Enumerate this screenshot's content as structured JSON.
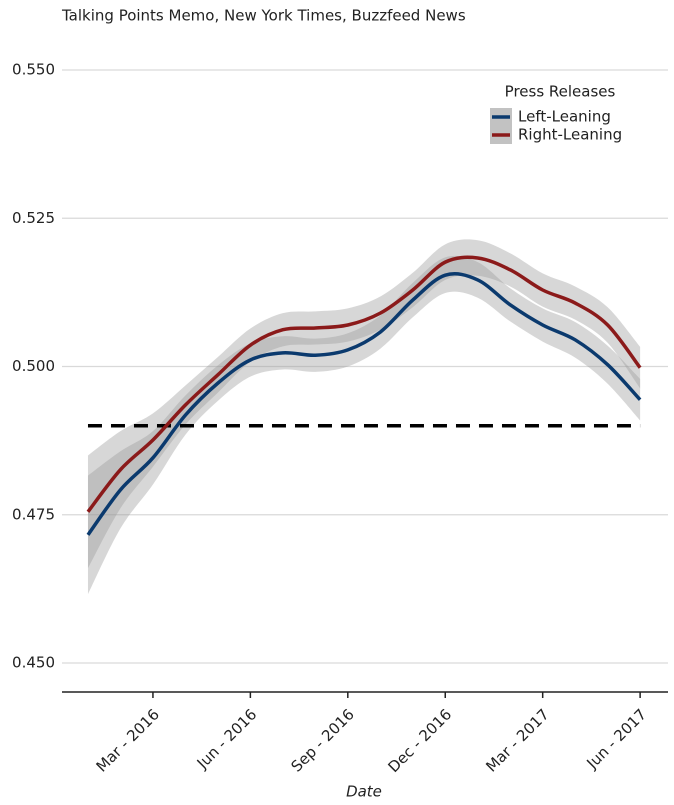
{
  "chart_data": {
    "type": "line",
    "title": "Talking Points Memo, New York Times, Buzzfeed News",
    "xlabel": "Date",
    "legend_title": "Press Releases",
    "legend": "top-right",
    "grid": true,
    "x": [
      "2016-01",
      "2016-02",
      "2016-03",
      "2016-04",
      "2016-05",
      "2016-06",
      "2016-07",
      "2016-08",
      "2016-09",
      "2016-10",
      "2016-11",
      "2016-12",
      "2017-01",
      "2017-02",
      "2017-03",
      "2017-04",
      "2017-05",
      "2017-06"
    ],
    "xlim": [
      "2015-12",
      "2017-07"
    ],
    "xticks": [
      {
        "value": "2016-03",
        "label": "Mar - 2016"
      },
      {
        "value": "2016-06",
        "label": "Jun - 2016"
      },
      {
        "value": "2016-09",
        "label": "Sep - 2016"
      },
      {
        "value": "2016-12",
        "label": "Dec - 2016"
      },
      {
        "value": "2017-03",
        "label": "Mar - 2017"
      },
      {
        "value": "2017-06",
        "label": "Jun - 2017"
      }
    ],
    "ylim": [
      0.445,
      0.555
    ],
    "yticks": [
      {
        "value": 0.45,
        "label": "0.450"
      },
      0.475,
      {
        "value": 0.5,
        "label": "0.500"
      },
      0.525,
      {
        "value": 0.55,
        "label": "0.550"
      }
    ],
    "reference_line": 0.49,
    "series": [
      {
        "name": "Left-Leaning",
        "color": "#0b3a6e",
        "values": [
          0.4716,
          0.4792,
          0.4846,
          0.4918,
          0.4972,
          0.5011,
          0.5023,
          0.5019,
          0.5028,
          0.5058,
          0.5112,
          0.5154,
          0.5146,
          0.5104,
          0.507,
          0.5045,
          0.5003,
          0.4944
        ],
        "lower": [
          0.4616,
          0.4727,
          0.4801,
          0.4885,
          0.4942,
          0.4983,
          0.4995,
          0.4991,
          0.5,
          0.503,
          0.5083,
          0.5124,
          0.5116,
          0.5076,
          0.5042,
          0.5015,
          0.4971,
          0.4909
        ],
        "upper": [
          0.4816,
          0.4857,
          0.4891,
          0.4951,
          0.5002,
          0.5039,
          0.5051,
          0.5047,
          0.5056,
          0.5086,
          0.5141,
          0.5184,
          0.5176,
          0.5132,
          0.5098,
          0.5075,
          0.5035,
          0.4979
        ]
      },
      {
        "name": "Right-Leaning",
        "color": "#8b1a1a",
        "values": [
          0.4755,
          0.4826,
          0.4876,
          0.4935,
          0.4986,
          0.5036,
          0.5062,
          0.5065,
          0.507,
          0.509,
          0.5129,
          0.5176,
          0.5183,
          0.5163,
          0.5129,
          0.5107,
          0.507,
          0.4998
        ],
        "lower": [
          0.466,
          0.4761,
          0.4831,
          0.4902,
          0.4956,
          0.5008,
          0.5034,
          0.5037,
          0.5042,
          0.5062,
          0.51,
          0.5146,
          0.5153,
          0.5135,
          0.5101,
          0.5079,
          0.504,
          0.4963
        ],
        "upper": [
          0.485,
          0.4891,
          0.4921,
          0.4968,
          0.5016,
          0.5064,
          0.509,
          0.5093,
          0.5098,
          0.5118,
          0.5158,
          0.5206,
          0.5213,
          0.5191,
          0.5157,
          0.5135,
          0.51,
          0.5033
        ]
      }
    ]
  }
}
